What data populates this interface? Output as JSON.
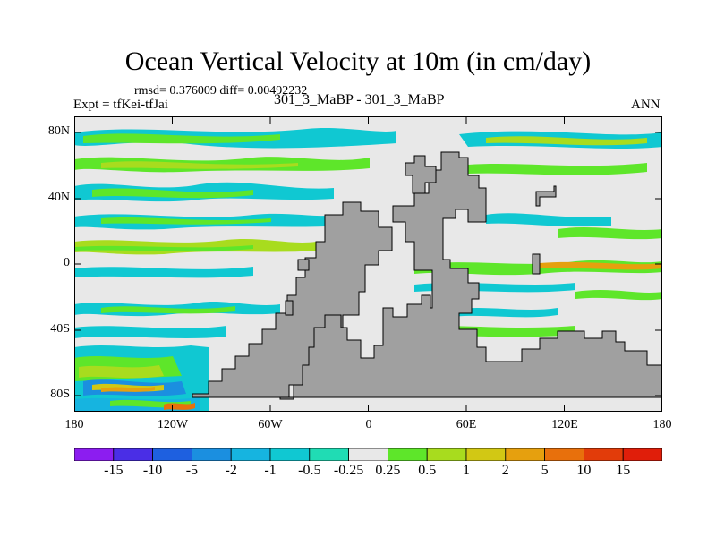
{
  "title": "Ocean Vertical Velocity at 10m (in cm/day)",
  "stats": "rmsd= 0.376009 diff= 0.00492232",
  "expt": "Expt = tfKei-tfJai",
  "difference_label": "301_3_MaBP - 301_3_MaBP",
  "season": "ANN",
  "y_ticks": [
    "80N",
    "40N",
    "0",
    "40S",
    "80S"
  ],
  "x_ticks": [
    "180",
    "120W",
    "60W",
    "0",
    "60E",
    "120E",
    "180"
  ],
  "colorbar": {
    "labels": [
      "-15",
      "-10",
      "-5",
      "-2",
      "-1",
      "-0.5",
      "-0.25",
      "0.25",
      "0.5",
      "1",
      "2",
      "5",
      "10",
      "15"
    ],
    "colors": [
      "#8c1df0",
      "#4a2ee6",
      "#1e60e0",
      "#1b8fe0",
      "#16b4e0",
      "#10c8d2",
      "#20dcb4",
      "#e8e8e8",
      "#5ee62a",
      "#a8dc1e",
      "#d2c814",
      "#e6a00e",
      "#e8700c",
      "#e23c0a",
      "#e01e0a"
    ]
  },
  "colors": {
    "land": "#a0a0a0",
    "ocean_neutral": "#e8e8e8",
    "frame": "#000000"
  }
}
